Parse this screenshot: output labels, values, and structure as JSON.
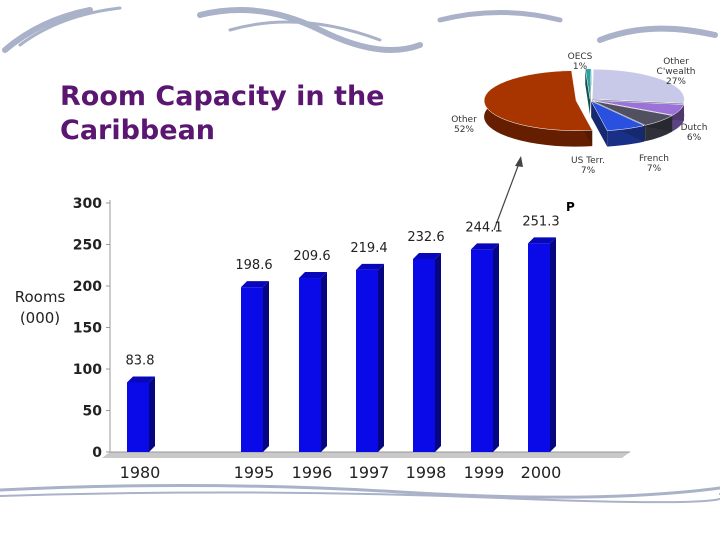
{
  "chart_data": [
    {
      "type": "bar",
      "title": "Room Capacity in the Caribbean",
      "ylabel": "Rooms (000)",
      "categories": [
        "1980",
        "1995",
        "1996",
        "1997",
        "1998",
        "1999",
        "2000"
      ],
      "values": [
        83.8,
        198.6,
        209.6,
        219.4,
        232.6,
        244.1,
        251.3
      ],
      "annotation": "P",
      "color": "#0a0ae8",
      "ylim": [
        0,
        300
      ],
      "yticks": [
        0,
        50,
        100,
        150,
        200,
        250,
        300
      ]
    },
    {
      "type": "pie",
      "categories": [
        "OECS",
        "Other C'wealth",
        "Dutch",
        "French",
        "US Terr.",
        "Other"
      ],
      "values": [
        1,
        27,
        6,
        7,
        7,
        52
      ],
      "value_labels": [
        "1%",
        "27%",
        "6%",
        "7%",
        "7%",
        "52%"
      ],
      "colors": [
        "#2aa0a0",
        "#c8c8e8",
        "#9a72d8",
        "#505060",
        "#2a50e0",
        "#a83400"
      ]
    }
  ]
}
